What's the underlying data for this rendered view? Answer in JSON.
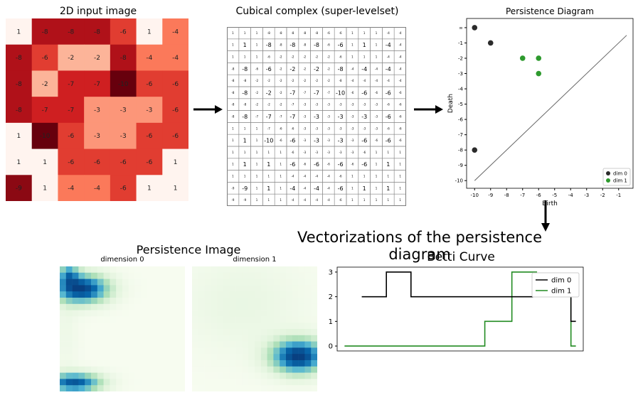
{
  "input_image": {
    "title": "2D input image",
    "grid": [
      [
        1,
        -8,
        -8,
        -8,
        -6,
        1,
        -4
      ],
      [
        -8,
        -6,
        -2,
        -2,
        -8,
        -4,
        -4
      ],
      [
        -8,
        -2,
        -7,
        -7,
        -10,
        -6,
        -6
      ],
      [
        -8,
        -7,
        -7,
        -3,
        -3,
        -3,
        -6
      ],
      [
        1,
        -10,
        -6,
        -3,
        -3,
        -6,
        -6
      ],
      [
        1,
        1,
        -6,
        -6,
        -6,
        -6,
        1
      ],
      [
        -9,
        1,
        -4,
        -4,
        -6,
        1,
        1
      ]
    ]
  },
  "complex": {
    "title": "Cubical complex (super-levelset)",
    "size": 15
  },
  "persistence_diagram": {
    "title": "Persistence Diagram",
    "xlabel": "Birth",
    "ylabel": "Death",
    "x_ticks": [
      "-10",
      "-9",
      "-8",
      "-7",
      "-6",
      "-5",
      "-4",
      "-3",
      "-2",
      "-1"
    ],
    "y_ticks": [
      "∞",
      "-1",
      "-2",
      "-3",
      "-4",
      "-5",
      "-6",
      "-7",
      "-8",
      "-9",
      "-10"
    ],
    "xlim": [
      -10.5,
      -0.1
    ],
    "ylim": [
      -10.5,
      0.6
    ],
    "inf_value": 0,
    "colors": {
      "dim0": "#2b2b2b",
      "dim1": "#2e9a2e"
    },
    "legend": [
      "dim 0",
      "dim 1"
    ],
    "dim0_points": [
      [
        -10,
        0
      ],
      [
        -9,
        -1
      ],
      [
        -10,
        -8
      ]
    ],
    "dim1_points": [
      [
        -7,
        -2
      ],
      [
        -6,
        -2
      ],
      [
        -6,
        -3
      ]
    ]
  },
  "vectorizations_title": "Vectorizations of the persistence diagram",
  "persistence_image": {
    "title": "Persistence Image",
    "subtitles": [
      "dimension 0",
      "dimension 1"
    ],
    "resolution": 20
  },
  "betti_curve": {
    "title": "Betti Curve",
    "y_ticks": [
      "0",
      "1",
      "2",
      "3"
    ],
    "ylim": [
      -0.2,
      3.2
    ],
    "xlim": [
      0,
      100
    ],
    "legend": [
      "dim 0",
      "dim 1"
    ],
    "colors": {
      "dim0": "#000000",
      "dim1": "#228b22"
    },
    "dim0_steps": [
      [
        2,
        10
      ],
      [
        3,
        20
      ],
      [
        2,
        30
      ],
      [
        2,
        90
      ],
      [
        1,
        95
      ]
    ],
    "dim1_steps": [
      [
        0,
        3
      ],
      [
        1,
        60
      ],
      [
        3,
        71
      ],
      [
        2,
        81
      ],
      [
        0,
        95
      ]
    ]
  },
  "chart_data": [
    {
      "type": "scatter",
      "title": "Persistence Diagram",
      "xlabel": "Birth",
      "ylabel": "Death",
      "series": [
        {
          "name": "dim 0",
          "points": [
            [
              -10,
              "inf"
            ],
            [
              -9,
              -1
            ],
            [
              -10,
              -8
            ]
          ]
        },
        {
          "name": "dim 1",
          "points": [
            [
              -7,
              -2
            ],
            [
              -6,
              -2
            ],
            [
              -6,
              -3
            ]
          ]
        }
      ]
    },
    {
      "type": "line",
      "title": "Betti Curve",
      "series": [
        {
          "name": "dim 0",
          "values": [
            2,
            3,
            2,
            2,
            1
          ]
        },
        {
          "name": "dim 1",
          "values": [
            0,
            1,
            3,
            2,
            0
          ]
        }
      ]
    }
  ]
}
